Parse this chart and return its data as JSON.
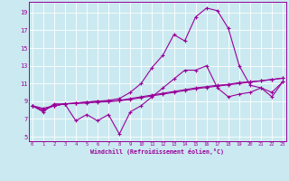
{
  "xlabel": "Windchill (Refroidissement éolien,°C)",
  "bg_color": "#cbe9f0",
  "line_color": "#990099",
  "grid_color": "#ffffff",
  "x_ticks": [
    0,
    1,
    2,
    3,
    4,
    5,
    6,
    7,
    8,
    9,
    10,
    11,
    12,
    13,
    14,
    15,
    16,
    17,
    18,
    19,
    20,
    21,
    22,
    23
  ],
  "y_ticks": [
    5,
    7,
    9,
    11,
    13,
    15,
    17,
    19
  ],
  "xlim": [
    -0.3,
    23.3
  ],
  "ylim": [
    4.5,
    20.2
  ],
  "series1": [
    8.5,
    7.8,
    8.7,
    8.7,
    6.8,
    7.5,
    6.8,
    7.5,
    5.3,
    7.8,
    8.5,
    9.5,
    10.5,
    11.5,
    12.5,
    12.5,
    13.0,
    10.5,
    9.5,
    9.8,
    10.0,
    10.5,
    9.5,
    11.2
  ],
  "series2": [
    8.5,
    8.2,
    8.5,
    8.7,
    8.75,
    8.8,
    8.9,
    8.95,
    9.05,
    9.2,
    9.4,
    9.6,
    9.8,
    10.0,
    10.2,
    10.4,
    10.55,
    10.7,
    10.85,
    11.0,
    11.15,
    11.3,
    11.45,
    11.6
  ],
  "series3": [
    8.5,
    8.0,
    8.5,
    8.7,
    8.8,
    8.9,
    9.0,
    9.0,
    9.1,
    9.3,
    9.5,
    9.7,
    9.9,
    10.1,
    10.3,
    10.5,
    10.65,
    10.8,
    10.9,
    11.1,
    11.2,
    11.3,
    11.45,
    11.6
  ],
  "series4": [
    8.5,
    8.0,
    8.5,
    8.7,
    8.8,
    8.9,
    9.0,
    9.1,
    9.3,
    10.0,
    11.0,
    12.8,
    14.2,
    16.5,
    15.8,
    18.5,
    19.5,
    19.2,
    17.2,
    13.0,
    10.8,
    10.5,
    10.0,
    11.2
  ]
}
